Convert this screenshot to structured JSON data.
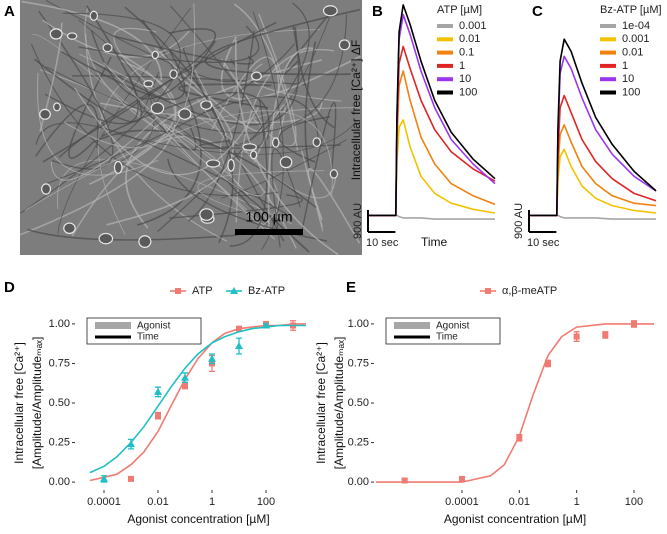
{
  "panel_labels": [
    "A",
    "B",
    "C",
    "D",
    "E"
  ],
  "micrograph": {
    "scale_bar_label": "100 µm"
  },
  "chart_data": [
    {
      "type": "line",
      "ylabel": "Intracellular free [Ca²⁺] ΔF",
      "xlabel": "Time",
      "legend_title": "ATP [µM]",
      "x": [
        0,
        9.8,
        10.2,
        11,
        12.5,
        15,
        19,
        24,
        30,
        38,
        46
      ],
      "xlim": [
        0,
        46
      ],
      "ylim": [
        -800,
        8800
      ],
      "scale_bars": [
        {
          "axis": "y",
          "value": 900,
          "label": "900 AU"
        },
        {
          "axis": "x",
          "value": 10,
          "label": "10 sec"
        }
      ],
      "series": [
        {
          "name": "0.001",
          "color": "#a6a6a6",
          "values": [
            0,
            0,
            0,
            -50,
            -100,
            -100,
            -100,
            -150,
            -150,
            -150,
            -150
          ]
        },
        {
          "name": "0.01",
          "color": "#f2c200",
          "values": [
            0,
            0,
            2200,
            3600,
            3900,
            2800,
            1600,
            900,
            500,
            250,
            100
          ]
        },
        {
          "name": "0.1",
          "color": "#f0820f",
          "values": [
            0,
            0,
            3000,
            5300,
            5900,
            4700,
            3200,
            2100,
            1300,
            800,
            450
          ]
        },
        {
          "name": "1",
          "color": "#e02424",
          "values": [
            0,
            0,
            3500,
            6200,
            6900,
            6000,
            4700,
            3500,
            2600,
            1900,
            1400
          ]
        },
        {
          "name": "10",
          "color": "#9b35ef",
          "values": [
            0,
            0,
            3800,
            7200,
            8200,
            7400,
            5900,
            4400,
            3100,
            2100,
            1300
          ]
        },
        {
          "name": "100",
          "color": "#000000",
          "values": [
            0,
            0,
            4000,
            7500,
            8600,
            7800,
            6300,
            4700,
            3400,
            2300,
            1500
          ]
        }
      ]
    },
    {
      "type": "line",
      "legend_title": "Bz-ATP [µM]",
      "x": [
        0,
        9.8,
        10.2,
        11,
        12.5,
        15,
        19,
        24,
        30,
        38,
        46
      ],
      "xlim": [
        0,
        46
      ],
      "ylim": [
        -800,
        8800
      ],
      "scale_bars": [
        {
          "axis": "y",
          "value": 900,
          "label": "900 AU"
        },
        {
          "axis": "x",
          "value": 10,
          "label": "10 sec"
        }
      ],
      "series": [
        {
          "name": "1e-04",
          "color": "#a6a6a6",
          "values": [
            0,
            0,
            0,
            -50,
            -100,
            -100,
            -100,
            -100,
            -150,
            -150,
            -150
          ]
        },
        {
          "name": "0.001",
          "color": "#f2c200",
          "values": [
            0,
            0,
            1400,
            2400,
            2700,
            2000,
            1200,
            700,
            400,
            200,
            100
          ]
        },
        {
          "name": "0.01",
          "color": "#f0820f",
          "values": [
            0,
            0,
            1900,
            3300,
            3700,
            3000,
            2000,
            1300,
            800,
            500,
            400
          ]
        },
        {
          "name": "1",
          "color": "#e02424",
          "values": [
            0,
            0,
            2500,
            4400,
            4900,
            4200,
            3100,
            2200,
            1500,
            900,
            600
          ]
        },
        {
          "name": "10",
          "color": "#9b35ef",
          "values": [
            0,
            0,
            3200,
            5800,
            6500,
            6000,
            4800,
            3500,
            2500,
            1600,
            1000
          ]
        },
        {
          "name": "100",
          "color": "#000000",
          "values": [
            0,
            0,
            3500,
            6300,
            7200,
            6700,
            5400,
            4000,
            2900,
            1800,
            1000
          ]
        }
      ]
    },
    {
      "type": "scatter",
      "xscale": "log",
      "xlabel": "Agonist concentration [µM]",
      "ylabel": [
        "Intracellular free [Ca²⁺]",
        "[Amplitude/Amplitudeₘₐₓ]"
      ],
      "inset_legend": [
        "Agonist",
        "Time"
      ],
      "xlim": [
        1e-05,
        10000
      ],
      "ylim": [
        -0.05,
        1.05
      ],
      "xticks": [
        0.0001,
        0.01,
        1,
        100
      ],
      "yticks": [
        {
          "value": 0,
          "label": "0.00"
        },
        0.25,
        {
          "value": 0.5,
          "label": "0.50"
        },
        0.75,
        {
          "value": 1,
          "label": "1.00"
        }
      ],
      "series": [
        {
          "name": "ATP",
          "color": "#f07b72",
          "marker": "square",
          "x": [
            0.001,
            0.01,
            0.1,
            1,
            10,
            100,
            1000
          ],
          "values": [
            0.02,
            0.42,
            0.61,
            0.75,
            0.97,
            1,
            0.99
          ],
          "errors": [
            0.01,
            0.02,
            0.02,
            0.05,
            0.01,
            0.01,
            0.03
          ],
          "fit_x": [
            3e-05,
            0.0001,
            0.0003,
            0.001,
            0.003,
            0.01,
            0.03,
            0.1,
            0.3,
            1,
            3,
            10,
            30,
            100,
            300,
            1000,
            3000
          ],
          "fit_values": [
            0.01,
            0.03,
            0.05,
            0.11,
            0.19,
            0.32,
            0.48,
            0.65,
            0.78,
            0.88,
            0.94,
            0.97,
            0.98,
            0.99,
            0.99,
            1,
            1
          ]
        },
        {
          "name": "Bz-ATP",
          "color": "#1fbfc6",
          "marker": "triangle",
          "x": [
            0.0001,
            0.001,
            0.01,
            0.1,
            1,
            10,
            100
          ],
          "values": [
            0.02,
            0.24,
            0.57,
            0.66,
            0.78,
            0.86,
            0.99
          ],
          "errors": [
            0.02,
            0.03,
            0.03,
            0.03,
            0.03,
            0.05,
            0.01
          ],
          "fit_x": [
            3e-05,
            0.0001,
            0.0003,
            0.001,
            0.003,
            0.01,
            0.03,
            0.1,
            0.3,
            1,
            3,
            10,
            30,
            100,
            300,
            1000,
            3000
          ],
          "fit_values": [
            0.06,
            0.1,
            0.16,
            0.25,
            0.35,
            0.48,
            0.6,
            0.72,
            0.81,
            0.88,
            0.92,
            0.95,
            0.97,
            0.98,
            0.99,
            0.99,
            0.99
          ]
        }
      ]
    },
    {
      "type": "scatter",
      "xscale": "log",
      "xlabel": "Agonist concentration [µM]",
      "ylabel": [
        "Intracellular free [Ca²⁺]",
        "[Amplitude/Amplitudeₘₐₓ]"
      ],
      "inset_legend": [
        "Agonist",
        "Time"
      ],
      "xlim": [
        1e-07,
        500
      ],
      "ylim": [
        -0.05,
        1.05
      ],
      "xticks": [
        0.0001,
        0.01,
        1,
        100
      ],
      "yticks": [
        {
          "value": 0,
          "label": "0.00"
        },
        0.25,
        {
          "value": 0.5,
          "label": "0.50"
        },
        0.75,
        {
          "value": 1,
          "label": "1.00"
        }
      ],
      "series": [
        {
          "name": "α,β-meATP",
          "color": "#f07b72",
          "marker": "square",
          "x": [
            1e-06,
            0.0001,
            0.01,
            0.1,
            1,
            10,
            100
          ],
          "values": [
            0.01,
            0.02,
            0.28,
            0.75,
            0.92,
            0.93,
            1
          ],
          "errors": [
            0.01,
            0.01,
            0.02,
            0.02,
            0.03,
            0.02,
            0.02
          ],
          "fit_x": [
            1e-07,
            1e-06,
            1e-05,
            0.0001,
            0.001,
            0.003,
            0.01,
            0.03,
            0.1,
            0.3,
            1,
            10,
            100,
            500
          ],
          "fit_values": [
            0,
            0,
            0,
            0,
            0.04,
            0.11,
            0.29,
            0.55,
            0.8,
            0.92,
            0.98,
            1,
            1,
            1
          ]
        }
      ]
    }
  ]
}
